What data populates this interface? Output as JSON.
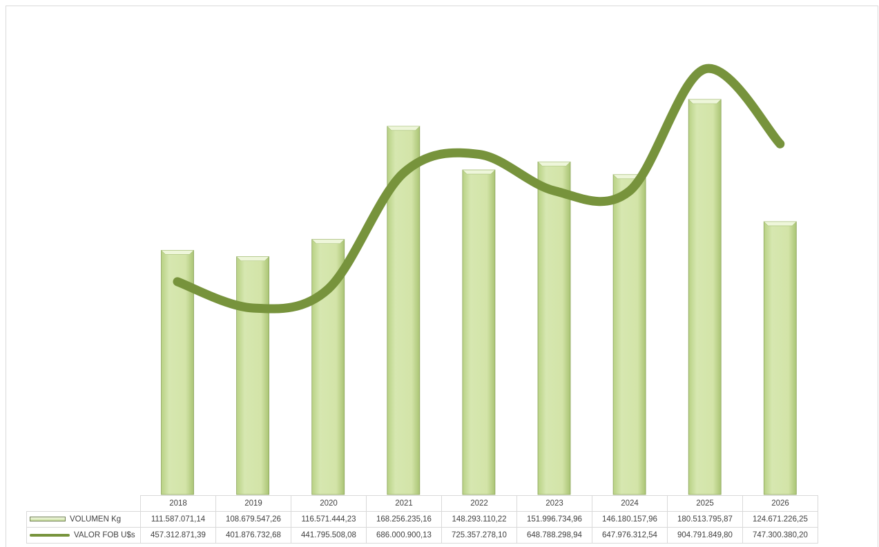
{
  "chart_data": {
    "type": "bar",
    "categories": [
      "2018",
      "2019",
      "2020",
      "2021",
      "2022",
      "2023",
      "2024",
      "2025",
      "2026"
    ],
    "series": [
      {
        "name": "VOLUMEN Kg",
        "kind": "bar",
        "color": "#d3e4a8",
        "values": [
          111587071.14,
          108679547.26,
          116571444.23,
          168256235.16,
          148293110.22,
          151996734.96,
          146180157.96,
          180513795.87,
          124671226.25
        ],
        "labels": [
          "111.587.071,14",
          "108.679.547,26",
          "116.571.444,23",
          "168.256.235,16",
          "148.293.110,22",
          "151.996.734,96",
          "146.180.157,96",
          "180.513.795,87",
          "124.671.226,25"
        ]
      },
      {
        "name": "VALOR FOB U$s",
        "kind": "line",
        "smooth": true,
        "color": "#77933c",
        "values": [
          457312871.39,
          401876732.68,
          441795508.08,
          686000900.13,
          725357278.1,
          648788298.94,
          647976312.54,
          904791849.8,
          747300380.2
        ],
        "labels": [
          "457.312.871,39",
          "401.876.732,68",
          "441.795.508,08",
          "686.000.900,13",
          "725.357.278,10",
          "648.788.298,94",
          "647.976.312,54",
          "904.791.849,80",
          "747.300.380,20"
        ]
      }
    ],
    "title": "",
    "xlabel": "",
    "ylabel": "",
    "axes_visible": false,
    "grid": false,
    "legend": "data table below chart"
  }
}
